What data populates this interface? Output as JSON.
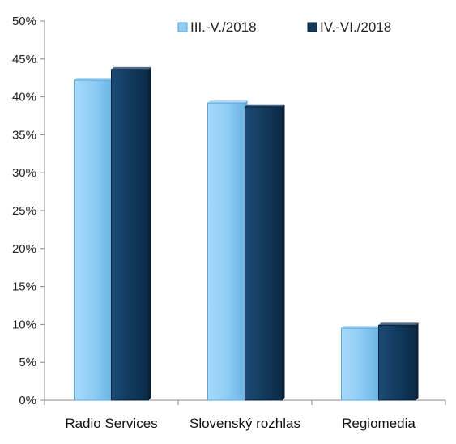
{
  "chart_data": {
    "type": "bar",
    "categories": [
      "Radio Services",
      "Slovenský rozhlas",
      "Regiomedia"
    ],
    "series": [
      {
        "name": "III.-V./2018",
        "values": [
          42.2,
          39.2,
          9.5
        ],
        "color": "#8fcdf5",
        "edge": "#5aa6d6"
      },
      {
        "name": "IV.-VI./2018",
        "values": [
          43.6,
          38.7,
          9.9
        ],
        "color": "#123a5e",
        "edge": "#0a2238"
      }
    ],
    "ylim": [
      0,
      50
    ],
    "yticks": [
      0,
      5,
      10,
      15,
      20,
      25,
      30,
      35,
      40,
      45,
      50
    ],
    "ytick_suffix": "%",
    "grid": false,
    "legend": "top-right",
    "title": "",
    "xlabel": "",
    "ylabel": ""
  }
}
